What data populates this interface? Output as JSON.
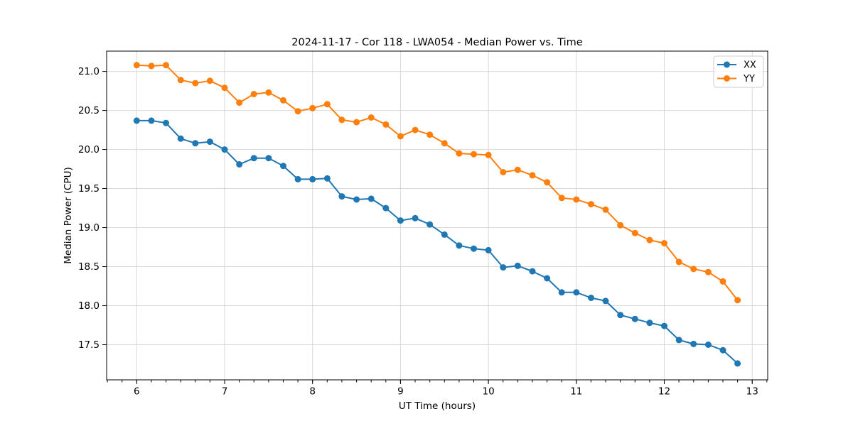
{
  "chart_data": {
    "type": "line",
    "title": "2024-11-17 - Cor 118 - LWA054 - Median Power vs. Time",
    "xlabel": "UT Time (hours)",
    "ylabel": "Median Power (CPU)",
    "xlim": [
      5.658,
      13.176
    ],
    "ylim": [
      17.05,
      21.26
    ],
    "x_ticks": [
      6,
      7,
      8,
      9,
      10,
      11,
      12,
      13
    ],
    "x_tick_labels": [
      "6",
      "7",
      "8",
      "9",
      "10",
      "11",
      "12",
      "13"
    ],
    "y_ticks": [
      17.5,
      18.0,
      18.5,
      19.0,
      19.5,
      20.0,
      20.5,
      21.0
    ],
    "y_tick_labels": [
      "17.5",
      "18.0",
      "18.5",
      "19.0",
      "19.5",
      "20.0",
      "20.5",
      "21.0"
    ],
    "x_minor_step": 0.166667,
    "grid": true,
    "legend_position": "upper right",
    "colors": {
      "series_xx": "#1f77b4",
      "series_yy": "#ff7f0e",
      "grid": "#d9d9d9",
      "spine": "#000000",
      "legend_border": "#cccccc",
      "background": "#ffffff"
    },
    "x": [
      6.0,
      6.167,
      6.333,
      6.5,
      6.667,
      6.833,
      7.0,
      7.167,
      7.333,
      7.5,
      7.667,
      7.833,
      8.0,
      8.167,
      8.333,
      8.5,
      8.667,
      8.833,
      9.0,
      9.167,
      9.333,
      9.5,
      9.667,
      9.833,
      10.0,
      10.167,
      10.333,
      10.5,
      10.667,
      10.833,
      11.0,
      11.167,
      11.333,
      11.5,
      11.667,
      11.833,
      12.0,
      12.167,
      12.333,
      12.5,
      12.667,
      12.833
    ],
    "series": [
      {
        "name": "XX",
        "color": "#1f77b4",
        "values": [
          20.37,
          20.37,
          20.34,
          20.14,
          20.08,
          20.1,
          20.0,
          19.81,
          19.89,
          19.89,
          19.79,
          19.62,
          19.62,
          19.63,
          19.4,
          19.36,
          19.37,
          19.25,
          19.09,
          19.12,
          19.04,
          18.91,
          18.77,
          18.73,
          18.71,
          18.49,
          18.51,
          18.44,
          18.35,
          18.17,
          18.17,
          18.1,
          18.06,
          17.88,
          17.83,
          17.78,
          17.74,
          17.56,
          17.51,
          17.5,
          17.43,
          17.26
        ]
      },
      {
        "name": "YY",
        "color": "#ff7f0e",
        "values": [
          21.08,
          21.07,
          21.08,
          20.89,
          20.85,
          20.88,
          20.79,
          20.6,
          20.71,
          20.73,
          20.63,
          20.49,
          20.53,
          20.58,
          20.38,
          20.35,
          20.41,
          20.32,
          20.17,
          20.25,
          20.19,
          20.08,
          19.95,
          19.94,
          19.93,
          19.71,
          19.74,
          19.67,
          19.58,
          19.38,
          19.36,
          19.3,
          19.23,
          19.03,
          18.93,
          18.84,
          18.8,
          18.56,
          18.47,
          18.43,
          18.31,
          18.07
        ]
      }
    ]
  }
}
